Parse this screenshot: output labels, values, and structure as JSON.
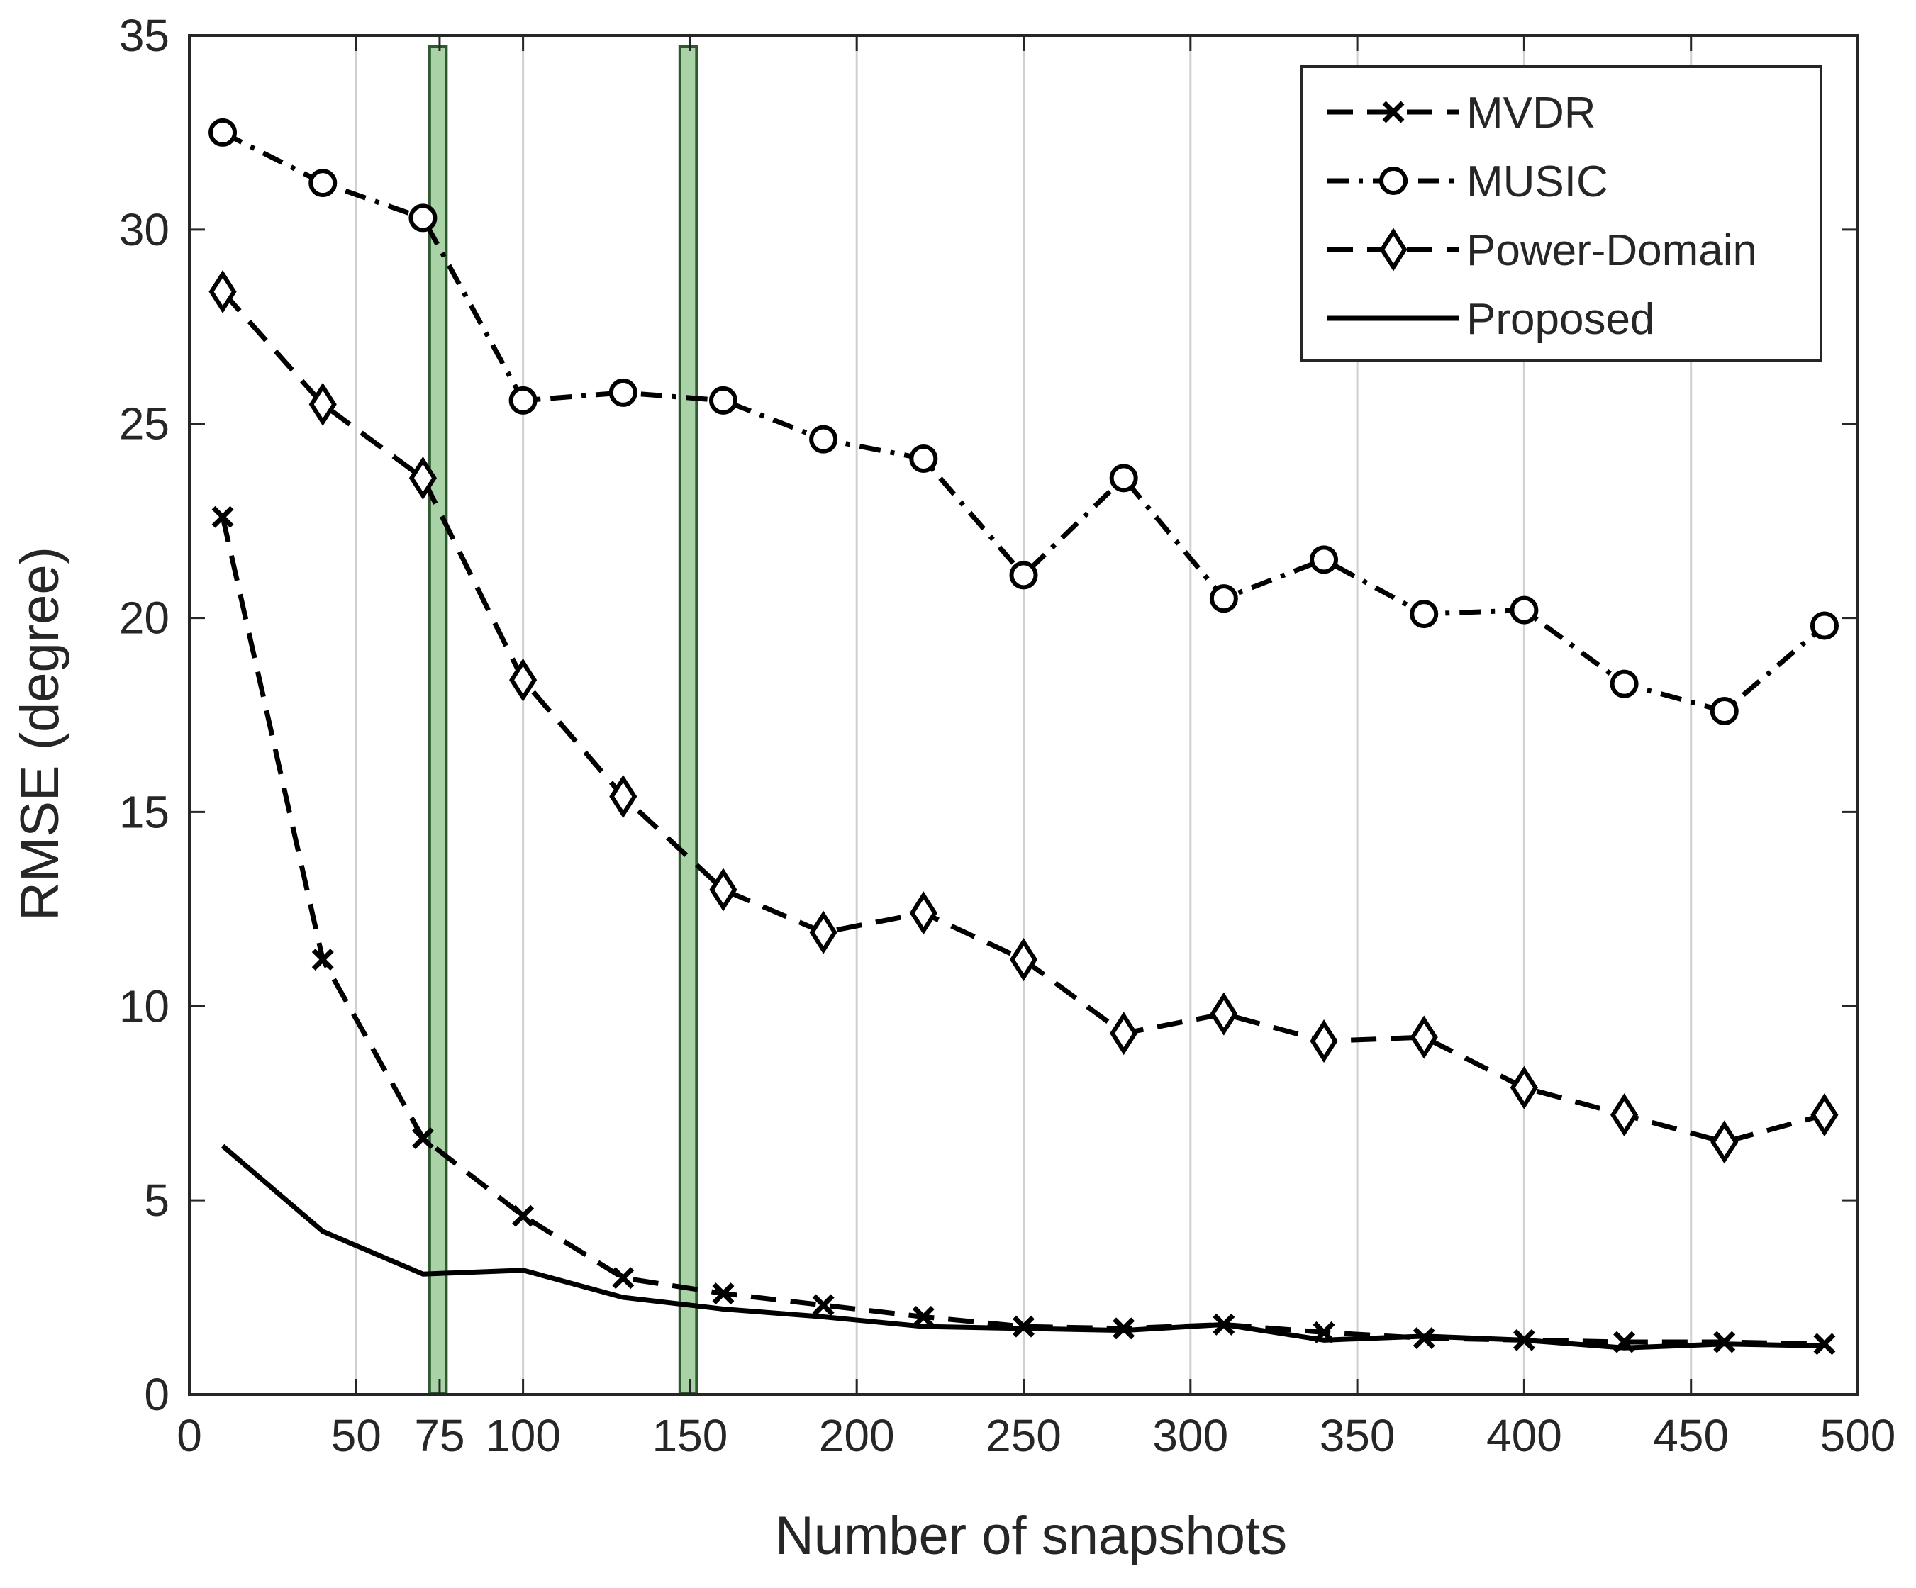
{
  "chart_data": {
    "type": "line",
    "title": "",
    "xlabel": "Number of snapshots",
    "ylabel": "RMSE (degree)",
    "xlim": [
      0,
      500
    ],
    "ylim": [
      0,
      35
    ],
    "xticks": [
      0,
      50,
      75,
      100,
      150,
      200,
      250,
      300,
      350,
      400,
      450,
      500
    ],
    "xtick_labels": [
      "0",
      "50",
      "75",
      "100",
      "150",
      "200",
      "250",
      "300",
      "350",
      "400",
      "450",
      "500"
    ],
    "yticks": [
      0,
      5,
      10,
      15,
      20,
      25,
      30,
      35
    ],
    "ytick_labels": [
      "0",
      "5",
      "10",
      "15",
      "20",
      "25",
      "30",
      "35"
    ],
    "vertical_gridlines": [
      50,
      100,
      150,
      200,
      250,
      300,
      350,
      400,
      450
    ],
    "highlight_bands": [
      {
        "x_start": 72,
        "x_end": 77,
        "color": "#a9d3a6"
      },
      {
        "x_start": 147,
        "x_end": 152,
        "color": "#a9d3a6"
      }
    ],
    "x": [
      10,
      40,
      70,
      100,
      130,
      160,
      190,
      220,
      250,
      280,
      310,
      340,
      370,
      400,
      430,
      460,
      490
    ],
    "series": [
      {
        "name": "MVDR",
        "style": "dashed",
        "marker": "x",
        "values": [
          22.6,
          11.2,
          6.6,
          4.6,
          3.0,
          2.6,
          2.3,
          2.0,
          1.75,
          1.7,
          1.8,
          1.6,
          1.45,
          1.4,
          1.35,
          1.35,
          1.3
        ]
      },
      {
        "name": "MUSIC",
        "style": "dashdot",
        "marker": "circle",
        "values": [
          32.5,
          31.2,
          30.3,
          25.6,
          25.8,
          25.6,
          24.6,
          24.1,
          21.1,
          23.6,
          20.5,
          21.5,
          20.1,
          20.2,
          18.3,
          17.6,
          19.8
        ]
      },
      {
        "name": "Power-Domain",
        "style": "dashed",
        "marker": "diamond",
        "values": [
          28.4,
          25.5,
          23.6,
          18.4,
          15.4,
          13.0,
          11.9,
          12.4,
          11.2,
          9.3,
          9.8,
          9.1,
          9.2,
          7.9,
          7.2,
          6.5,
          7.2
        ]
      },
      {
        "name": "Proposed",
        "style": "solid",
        "marker": "none",
        "values": [
          6.4,
          4.2,
          3.1,
          3.2,
          2.5,
          2.2,
          2.0,
          1.75,
          1.7,
          1.65,
          1.8,
          1.4,
          1.5,
          1.4,
          1.2,
          1.3,
          1.25
        ]
      }
    ],
    "legend": [
      "MVDR",
      "MUSIC",
      "Power-Domain",
      "Proposed"
    ],
    "legend_position": "top-right",
    "grid": "x-only",
    "colors": {
      "line": "#000000",
      "axis": "#262626",
      "grid": "#d0d0d0",
      "band_fill": "#a9d3a6",
      "band_stroke": "#2f5a2f"
    }
  }
}
